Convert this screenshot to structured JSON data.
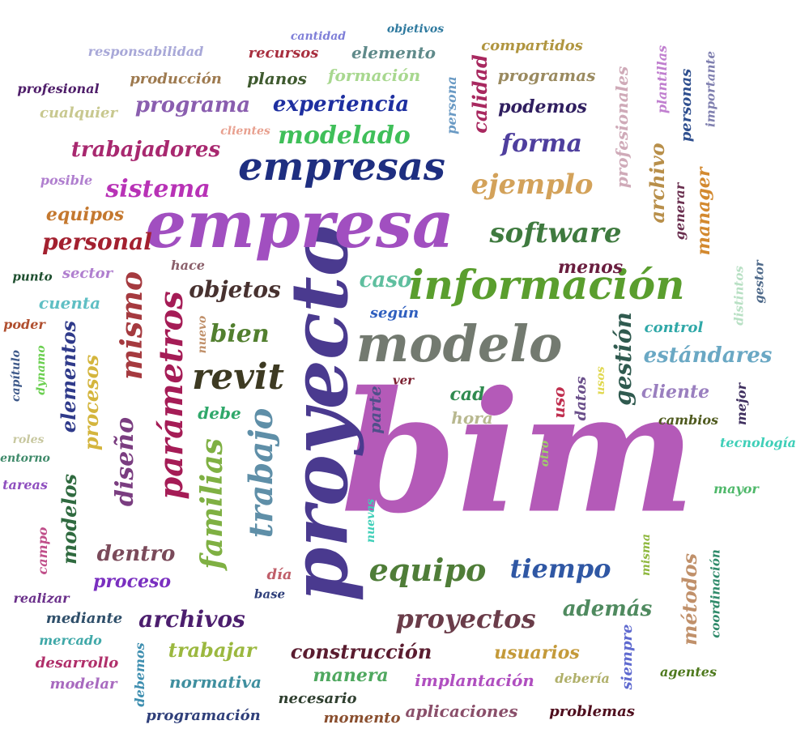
{
  "words": [
    {
      "text": "bim",
      "color": "#b45ab8"
    },
    {
      "text": "proyecto",
      "color": "#4a3a8f"
    },
    {
      "text": "empresa",
      "color": "#a14fc0"
    },
    {
      "text": "modelo",
      "color": "#737a70"
    },
    {
      "text": "información",
      "color": "#5a9e2e"
    },
    {
      "text": "empresas",
      "color": "#1e2e80"
    },
    {
      "text": "parámetros",
      "color": "#a51c56"
    },
    {
      "text": "trabajo",
      "color": "#5f8fa8"
    },
    {
      "text": "familias",
      "color": "#7fb043"
    },
    {
      "text": "revit",
      "color": "#3d3a22"
    },
    {
      "text": "equipo",
      "color": "#4f7d38"
    },
    {
      "text": "mismo",
      "color": "#a53a3f"
    },
    {
      "text": "software",
      "color": "#3f7a3f"
    },
    {
      "text": "ejemplo",
      "color": "#d3a25a"
    },
    {
      "text": "modelado",
      "color": "#3fbf59"
    },
    {
      "text": "forma",
      "color": "#4f3f9e"
    },
    {
      "text": "sistema",
      "color": "#b832b6"
    },
    {
      "text": "tiempo",
      "color": "#2f57a4"
    },
    {
      "text": "proyectos",
      "color": "#6a3c49"
    },
    {
      "text": "diseño",
      "color": "#7a3d80"
    },
    {
      "text": "objetos",
      "color": "#47312f"
    },
    {
      "text": "bien",
      "color": "#527f2f"
    },
    {
      "text": "gestión",
      "color": "#2f5a4f"
    },
    {
      "text": "personal",
      "color": "#a3202f"
    },
    {
      "text": "trabajadores",
      "color": "#a8286f"
    },
    {
      "text": "programa",
      "color": "#8a5eaf"
    },
    {
      "text": "experiencia",
      "color": "#1e2fa0"
    },
    {
      "text": "estándares",
      "color": "#6aa8c4"
    },
    {
      "text": "archivos",
      "color": "#4c1e6e"
    },
    {
      "text": "construcción",
      "color": "#5a1c2f"
    },
    {
      "text": "además",
      "color": "#4f8a5f"
    },
    {
      "text": "elementos",
      "color": "#2f3a8a"
    },
    {
      "text": "procesos",
      "color": "#d4b53d"
    },
    {
      "text": "modelos",
      "color": "#2f6a3f"
    },
    {
      "text": "dentro",
      "color": "#7a4a5a"
    },
    {
      "text": "métodos",
      "color": "#c0906a"
    },
    {
      "text": "caso",
      "color": "#5fbf9f"
    },
    {
      "text": "menos",
      "color": "#6a1e3f"
    },
    {
      "text": "calidad",
      "color": "#a8285f"
    },
    {
      "text": "podemos",
      "color": "#2f1e5f"
    },
    {
      "text": "archivo",
      "color": "#b88f4a"
    },
    {
      "text": "manager",
      "color": "#d3892f"
    },
    {
      "text": "profesionales",
      "color": "#cfaab8"
    },
    {
      "text": "cliente",
      "color": "#9a7fbf"
    },
    {
      "text": "trabajar",
      "color": "#9bb83f"
    },
    {
      "text": "manera",
      "color": "#4fa85f"
    },
    {
      "text": "usuarios",
      "color": "#c49a3a"
    },
    {
      "text": "implantación",
      "color": "#b04fc0"
    },
    {
      "text": "proceso",
      "color": "#7a2fc0"
    },
    {
      "text": "cuenta",
      "color": "#5fbfc4"
    },
    {
      "text": "equipos",
      "color": "#c4782f"
    },
    {
      "text": "producción",
      "color": "#9e7a4f"
    },
    {
      "text": "planos",
      "color": "#3f5a2f"
    },
    {
      "text": "formación",
      "color": "#a8d88f"
    },
    {
      "text": "programas",
      "color": "#9a8a5f"
    },
    {
      "text": "recursos",
      "color": "#a82f3f"
    },
    {
      "text": "elemento",
      "color": "#5f8a8a"
    },
    {
      "text": "compartidos",
      "color": "#b0953f"
    },
    {
      "text": "responsabilidad",
      "color": "#a8a8d8"
    },
    {
      "text": "cantidad",
      "color": "#7f7fd8"
    },
    {
      "text": "objetivos",
      "color": "#2f7a9f"
    },
    {
      "text": "profesional",
      "color": "#4f1e6a"
    },
    {
      "text": "cualquier",
      "color": "#c8c88f"
    },
    {
      "text": "clientes",
      "color": "#e8a08f"
    },
    {
      "text": "posible",
      "color": "#b07fcf"
    },
    {
      "text": "persona",
      "color": "#6a9ac4"
    },
    {
      "text": "plantillas",
      "color": "#c07fcf"
    },
    {
      "text": "personas",
      "color": "#2f4f8f"
    },
    {
      "text": "importante",
      "color": "#7f7faf"
    },
    {
      "text": "generar",
      "color": "#6a2f4f"
    },
    {
      "text": "hace",
      "color": "#8a5f6a"
    },
    {
      "text": "punto",
      "color": "#1e4f2f"
    },
    {
      "text": "sector",
      "color": "#b07fcf"
    },
    {
      "text": "según",
      "color": "#2f5fbf"
    },
    {
      "text": "control",
      "color": "#2fa8a8"
    },
    {
      "text": "distintos",
      "color": "#b8e0c4"
    },
    {
      "text": "gestor",
      "color": "#4f6a8a"
    },
    {
      "text": "poder",
      "color": "#b04f2f"
    },
    {
      "text": "nuevo",
      "color": "#c0906a"
    },
    {
      "text": "capítulo",
      "color": "#3f5a8a"
    },
    {
      "text": "dynamo",
      "color": "#6acf4f"
    },
    {
      "text": "debe",
      "color": "#2fa86a"
    },
    {
      "text": "parte",
      "color": "#4f4f8a"
    },
    {
      "text": "ver",
      "color": "#7a1e2f"
    },
    {
      "text": "cad",
      "color": "#2f8a4f"
    },
    {
      "text": "hora",
      "color": "#b8b88f"
    },
    {
      "text": "uso",
      "color": "#c02f4f"
    },
    {
      "text": "datos",
      "color": "#6a4f8a"
    },
    {
      "text": "usos",
      "color": "#e0d84f"
    },
    {
      "text": "cambios",
      "color": "#4f5a1e"
    },
    {
      "text": "mejor",
      "color": "#3f2f5f"
    },
    {
      "text": "roles",
      "color": "#c8c8a0"
    },
    {
      "text": "tecnología",
      "color": "#3fcfb8"
    },
    {
      "text": "entorno",
      "color": "#3f8a6a"
    },
    {
      "text": "tareas",
      "color": "#8f4fbf"
    },
    {
      "text": "nuevas",
      "color": "#3fcfb8"
    },
    {
      "text": "otro",
      "color": "#9fcf6a"
    },
    {
      "text": "mayor",
      "color": "#4fb86a"
    },
    {
      "text": "campo",
      "color": "#c04f8a"
    },
    {
      "text": "misma",
      "color": "#8fb83f"
    },
    {
      "text": "coordinación",
      "color": "#2f8a6a"
    },
    {
      "text": "día",
      "color": "#c05f6a"
    },
    {
      "text": "base",
      "color": "#2f3f7a"
    },
    {
      "text": "realizar",
      "color": "#6a2f8a"
    },
    {
      "text": "mediante",
      "color": "#2f4f6a"
    },
    {
      "text": "mercado",
      "color": "#3fa8a8"
    },
    {
      "text": "desarrollo",
      "color": "#b02f6a"
    },
    {
      "text": "modelar",
      "color": "#a86abf"
    },
    {
      "text": "debemos",
      "color": "#3f8fb0"
    },
    {
      "text": "normativa",
      "color": "#3f8f9f"
    },
    {
      "text": "necesario",
      "color": "#2f3f2f"
    },
    {
      "text": "debería",
      "color": "#b0b06a"
    },
    {
      "text": "siempre",
      "color": "#5f6acf"
    },
    {
      "text": "agentes",
      "color": "#4f7a1e"
    },
    {
      "text": "programación",
      "color": "#2f3f7a"
    },
    {
      "text": "momento",
      "color": "#8a4f2f"
    },
    {
      "text": "aplicaciones",
      "color": "#8a4f6a"
    },
    {
      "text": "problemas",
      "color": "#4f0f1e"
    }
  ]
}
